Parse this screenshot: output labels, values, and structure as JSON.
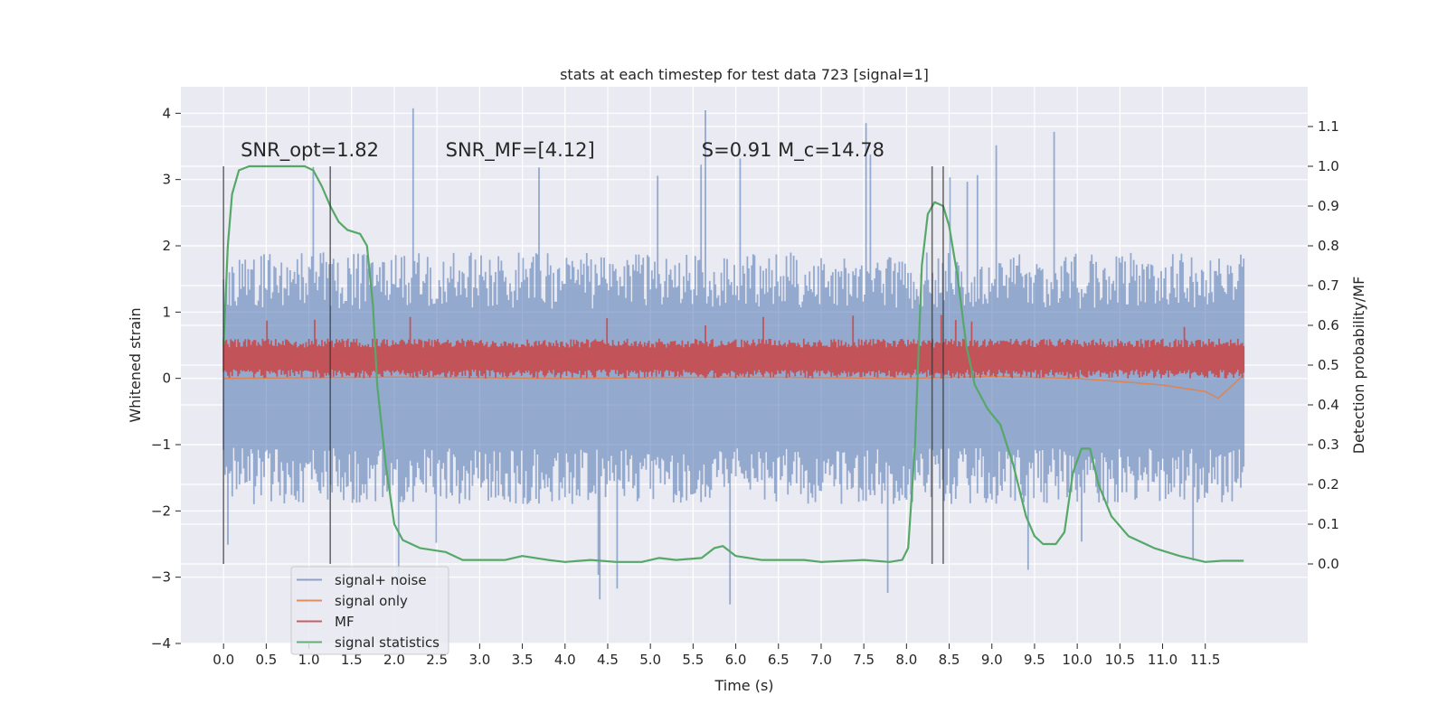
{
  "chart_data": {
    "type": "line",
    "title": "stats at each timestep for test data 723 [signal=1]",
    "xlabel": "Time (s)",
    "ylabel": "Whitened strain",
    "ylabel_right": "Detection probability/MF",
    "xlim": [
      -0.5,
      12.7
    ],
    "ylim": [
      -4.0,
      4.4
    ],
    "ylim_right": [
      -0.2,
      1.2
    ],
    "x_ticks": [
      0.0,
      0.5,
      1.0,
      1.5,
      2.0,
      2.5,
      3.0,
      3.5,
      4.0,
      4.5,
      5.0,
      5.5,
      6.0,
      6.5,
      7.0,
      7.5,
      8.0,
      8.5,
      9.0,
      9.5,
      10.0,
      10.5,
      11.0,
      11.5
    ],
    "y_ticks": [
      -4,
      -3,
      -2,
      -1,
      0,
      1,
      2,
      3,
      4
    ],
    "y_ticks_right": [
      0.0,
      0.1,
      0.2,
      0.3,
      0.4,
      0.5,
      0.6,
      0.7,
      0.8,
      0.9,
      1.0,
      1.1
    ],
    "grid": true,
    "legend_position": "lower-left",
    "annotations": [
      {
        "text": "SNR_opt=1.82",
        "x": 0.2,
        "y": 3.35
      },
      {
        "text": "SNR_MF=[4.12]",
        "x": 2.6,
        "y": 3.35
      },
      {
        "text": "S=0.91   M_c=14.78",
        "x": 5.6,
        "y": 3.35
      }
    ],
    "vertical_markers": [
      0.0,
      1.25,
      8.3,
      8.43
    ],
    "series": [
      {
        "name": "signal+ noise",
        "color": "#4c72b0",
        "axis": "left",
        "style": "noise_band",
        "x_range": [
          0.0,
          11.95
        ],
        "envelope": {
          "low": -1.9,
          "high": 1.9,
          "peak_low": -3.5,
          "peak_high": 4.1
        }
      },
      {
        "name": "signal only",
        "color": "#dd8452",
        "axis": "left",
        "points": [
          [
            0.0,
            0.0
          ],
          [
            2.0,
            0.02
          ],
          [
            4.0,
            0.0
          ],
          [
            6.0,
            0.02
          ],
          [
            8.0,
            0.0
          ],
          [
            9.0,
            0.03
          ],
          [
            10.0,
            0.0
          ],
          [
            10.5,
            -0.05
          ],
          [
            11.0,
            -0.1
          ],
          [
            11.5,
            -0.2
          ],
          [
            11.65,
            -0.3
          ],
          [
            11.95,
            0.05
          ]
        ]
      },
      {
        "name": "MF",
        "color": "#c44e52",
        "axis": "left",
        "style": "noise_band",
        "x_range": [
          0.0,
          11.95
        ],
        "envelope": {
          "low": 0.0,
          "high": 0.6,
          "peak_low": 0.0,
          "peak_high": 0.97
        }
      },
      {
        "name": "signal statistics",
        "color": "#55a868",
        "axis": "right",
        "points": [
          [
            0.0,
            0.55
          ],
          [
            0.05,
            0.8
          ],
          [
            0.1,
            0.93
          ],
          [
            0.18,
            0.99
          ],
          [
            0.3,
            1.0
          ],
          [
            0.5,
            1.0
          ],
          [
            0.75,
            1.0
          ],
          [
            0.95,
            1.0
          ],
          [
            1.05,
            0.99
          ],
          [
            1.15,
            0.95
          ],
          [
            1.25,
            0.9
          ],
          [
            1.35,
            0.86
          ],
          [
            1.45,
            0.84
          ],
          [
            1.6,
            0.83
          ],
          [
            1.68,
            0.8
          ],
          [
            1.75,
            0.65
          ],
          [
            1.8,
            0.45
          ],
          [
            1.9,
            0.25
          ],
          [
            2.0,
            0.1
          ],
          [
            2.1,
            0.06
          ],
          [
            2.3,
            0.04
          ],
          [
            2.6,
            0.03
          ],
          [
            2.8,
            0.01
          ],
          [
            3.0,
            0.01
          ],
          [
            3.3,
            0.01
          ],
          [
            3.5,
            0.02
          ],
          [
            3.8,
            0.01
          ],
          [
            4.0,
            0.005
          ],
          [
            4.3,
            0.01
          ],
          [
            4.6,
            0.005
          ],
          [
            4.9,
            0.005
          ],
          [
            5.1,
            0.015
          ],
          [
            5.3,
            0.01
          ],
          [
            5.6,
            0.015
          ],
          [
            5.75,
            0.04
          ],
          [
            5.85,
            0.045
          ],
          [
            6.0,
            0.02
          ],
          [
            6.3,
            0.01
          ],
          [
            6.8,
            0.01
          ],
          [
            7.0,
            0.005
          ],
          [
            7.5,
            0.01
          ],
          [
            7.8,
            0.005
          ],
          [
            7.95,
            0.01
          ],
          [
            8.02,
            0.04
          ],
          [
            8.1,
            0.3
          ],
          [
            8.18,
            0.75
          ],
          [
            8.25,
            0.88
          ],
          [
            8.33,
            0.91
          ],
          [
            8.43,
            0.9
          ],
          [
            8.5,
            0.85
          ],
          [
            8.6,
            0.72
          ],
          [
            8.7,
            0.55
          ],
          [
            8.8,
            0.45
          ],
          [
            8.95,
            0.39
          ],
          [
            9.1,
            0.35
          ],
          [
            9.25,
            0.25
          ],
          [
            9.4,
            0.12
          ],
          [
            9.5,
            0.07
          ],
          [
            9.6,
            0.05
          ],
          [
            9.75,
            0.05
          ],
          [
            9.85,
            0.08
          ],
          [
            9.95,
            0.23
          ],
          [
            10.05,
            0.29
          ],
          [
            10.15,
            0.29
          ],
          [
            10.25,
            0.2
          ],
          [
            10.4,
            0.12
          ],
          [
            10.6,
            0.07
          ],
          [
            10.9,
            0.04
          ],
          [
            11.2,
            0.02
          ],
          [
            11.5,
            0.005
          ],
          [
            11.7,
            0.008
          ],
          [
            11.95,
            0.008
          ]
        ]
      }
    ]
  }
}
